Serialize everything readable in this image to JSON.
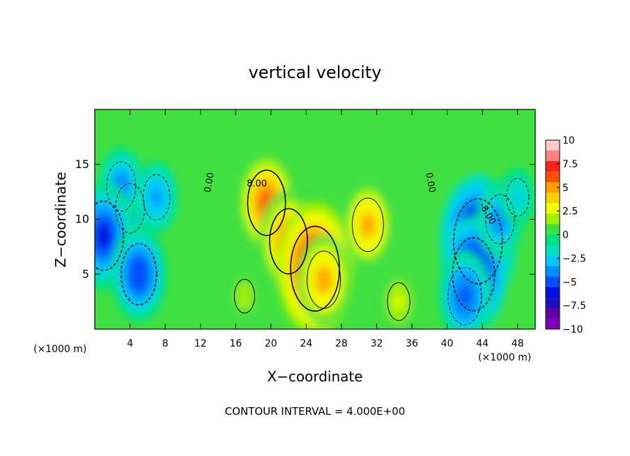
{
  "chart_data": {
    "type": "heatmap",
    "title": "vertical velocity",
    "xlabel": "X−coordinate",
    "ylabel": "Z−coordinate",
    "x_unit_label": "(×1000 m)",
    "footer": "CONTOUR INTERVAL = 4.000E+00",
    "xlim": [
      0,
      50
    ],
    "ylim": [
      0,
      20
    ],
    "x_ticks": [
      4,
      8,
      12,
      16,
      20,
      24,
      28,
      32,
      36,
      40,
      44,
      48
    ],
    "y_ticks": [
      5,
      10,
      15
    ],
    "colorbar": {
      "min": -10,
      "max": 10,
      "tick_values": [
        10,
        7.5,
        5,
        2.5,
        0,
        -2.5,
        -5,
        -7.5,
        -10
      ],
      "tick_labels": [
        "10",
        "7.5",
        "5",
        "2.5",
        "0",
        "−2.5",
        "−5",
        "−7.5",
        "−10"
      ],
      "colors": [
        "#ffc8c8",
        "#ff8080",
        "#ff2020",
        "#ff5000",
        "#ffa000",
        "#ffd000",
        "#f0ff00",
        "#a0f000",
        "#40e040",
        "#00e080",
        "#00e0c0",
        "#00c8ff",
        "#0090ff",
        "#0050ff",
        "#0010e0",
        "#2010c0",
        "#6000a0",
        "#8000c0"
      ]
    },
    "contour_labels": [
      {
        "text": "0.00",
        "x": 13.3,
        "y": 13.3,
        "rotation": -80
      },
      {
        "text": "8.00",
        "x": 18.4,
        "y": 13.0,
        "rotation": 0
      },
      {
        "text": "0.00",
        "x": 37.8,
        "y": 13.3,
        "rotation": 80
      },
      {
        "text": "-8.00",
        "x": 44.3,
        "y": 10.4,
        "rotation": 60
      }
    ],
    "features": [
      {
        "x": 19.5,
        "y": 11.5,
        "w": 0.6
      },
      {
        "x": 22,
        "y": 8,
        "w": 0.6
      },
      {
        "x": 25,
        "y": 5.5,
        "w": 0.85
      },
      {
        "x": 26,
        "y": 4.5,
        "w": 0.5
      },
      {
        "x": 31,
        "y": 9.5,
        "w": 0.45
      },
      {
        "x": 17,
        "y": 3,
        "w": 0.2
      },
      {
        "x": 34.5,
        "y": 2.5,
        "w": 0.25
      },
      {
        "x": 4,
        "y": 11,
        "w": -0.4
      },
      {
        "x": 3,
        "y": 13,
        "w": -0.4
      },
      {
        "x": 1,
        "y": 8.5,
        "w": -0.65
      },
      {
        "x": 5,
        "y": 5,
        "w": -0.55
      },
      {
        "x": 7,
        "y": 12,
        "w": -0.35
      },
      {
        "x": 43.5,
        "y": 8,
        "w": -0.85
      },
      {
        "x": 43,
        "y": 5,
        "w": -0.7
      },
      {
        "x": 46,
        "y": 10,
        "w": -0.4
      },
      {
        "x": 42,
        "y": 3,
        "w": -0.5
      },
      {
        "x": 48,
        "y": 12,
        "w": -0.25
      }
    ]
  }
}
